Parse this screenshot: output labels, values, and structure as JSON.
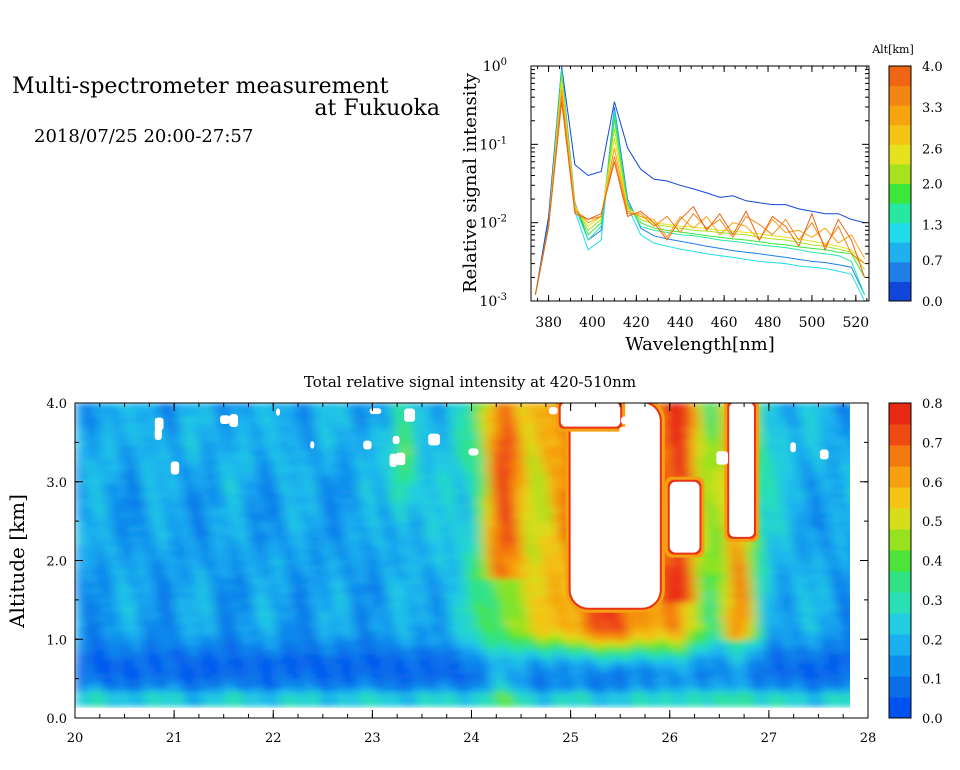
{
  "header": {
    "title_line1": "Multi-spectrometer measurement",
    "title_line2": "at Fukuoka",
    "date_range": "2018/07/25 20:00-27:57"
  },
  "colors": {
    "altitude_scale": [
      "#1047d8",
      "#1f7fe6",
      "#1fb0ee",
      "#20dcea",
      "#27e8a0",
      "#3be83a",
      "#a8e21f",
      "#e6e21f",
      "#f3c414",
      "#f7a40f",
      "#f38612",
      "#ee6514"
    ],
    "intensity_scale": [
      "#0052f0",
      "#0a6ee8",
      "#0d8ded",
      "#1ab0ef",
      "#22cde0",
      "#28dfb6",
      "#30e282",
      "#4ce43a",
      "#96e21f",
      "#d6de1a",
      "#f3c414",
      "#f6a010",
      "#f47a10",
      "#ef4a13",
      "#e82a14"
    ],
    "saturated": "#ffffff"
  },
  "chart_data": [
    {
      "type": "line",
      "xlabel": "Wavelength[nm]",
      "ylabel": "Relative signal intensity",
      "xlim": [
        372,
        526
      ],
      "ylim": [
        0.001,
        1
      ],
      "yscale": "log",
      "x_ticks": [
        "380",
        "400",
        "420",
        "440",
        "460",
        "480",
        "500",
        "520"
      ],
      "y_ticks": [
        {
          "base": "10",
          "exp": "0"
        },
        {
          "base": "10",
          "exp": "-1"
        },
        {
          "base": "10",
          "exp": "-2"
        },
        {
          "base": "10",
          "exp": "-3"
        }
      ],
      "colorbar": {
        "title": "Alt[km]",
        "range": [
          0.0,
          4.0
        ],
        "tick_labels": [
          "4.0",
          "3.3",
          "2.6",
          "2.0",
          "1.3",
          "0.7",
          "0.0"
        ]
      },
      "x": [
        374,
        380,
        386,
        392,
        398,
        404,
        410,
        416,
        422,
        428,
        434,
        440,
        446,
        452,
        458,
        464,
        470,
        476,
        482,
        488,
        494,
        500,
        506,
        512,
        518,
        524
      ],
      "series": [
        {
          "altitude": 0.2,
          "values": [
            0.0012,
            0.012,
            0.98,
            0.055,
            0.04,
            0.045,
            0.35,
            0.09,
            0.048,
            0.036,
            0.034,
            0.03,
            0.027,
            0.024,
            0.021,
            0.022,
            0.019,
            0.018,
            0.017,
            0.017,
            0.015,
            0.014,
            0.013,
            0.013,
            0.011,
            0.01
          ]
        },
        {
          "altitude": 0.6,
          "values": [
            0.0012,
            0.01,
            0.92,
            0.018,
            0.006,
            0.008,
            0.3,
            0.02,
            0.0085,
            0.0068,
            0.0062,
            0.0058,
            0.0054,
            0.005,
            0.0047,
            0.0044,
            0.0042,
            0.004,
            0.0038,
            0.0036,
            0.0034,
            0.0032,
            0.0031,
            0.0029,
            0.0027,
            0.0012
          ]
        },
        {
          "altitude": 1.0,
          "values": [
            0.0012,
            0.009,
            0.9,
            0.014,
            0.0045,
            0.006,
            0.27,
            0.016,
            0.007,
            0.0055,
            0.005,
            0.0046,
            0.0043,
            0.004,
            0.0038,
            0.0036,
            0.0034,
            0.0032,
            0.0031,
            0.003,
            0.0028,
            0.0027,
            0.0026,
            0.0024,
            0.0022,
            0.001
          ]
        },
        {
          "altitude": 1.4,
          "values": [
            0.0012,
            0.009,
            0.85,
            0.016,
            0.006,
            0.009,
            0.24,
            0.018,
            0.009,
            0.008,
            0.0075,
            0.007,
            0.0068,
            0.0064,
            0.006,
            0.0058,
            0.0055,
            0.0052,
            0.005,
            0.0048,
            0.0045,
            0.0042,
            0.004,
            0.0038,
            0.0032,
            0.0012
          ]
        },
        {
          "altitude": 1.8,
          "values": [
            0.0012,
            0.009,
            0.8,
            0.017,
            0.007,
            0.01,
            0.21,
            0.017,
            0.01,
            0.0085,
            0.008,
            0.0076,
            0.0072,
            0.0068,
            0.0065,
            0.0062,
            0.006,
            0.0057,
            0.0054,
            0.0052,
            0.0049,
            0.0047,
            0.0045,
            0.0042,
            0.004,
            0.002
          ]
        },
        {
          "altitude": 2.2,
          "values": [
            0.0012,
            0.009,
            0.72,
            0.017,
            0.008,
            0.011,
            0.16,
            0.016,
            0.011,
            0.0095,
            0.009,
            0.0085,
            0.008,
            0.0078,
            0.0075,
            0.0072,
            0.007,
            0.0065,
            0.0062,
            0.006,
            0.0056,
            0.0052,
            0.005,
            0.0046,
            0.0042,
            0.0025
          ]
        },
        {
          "altitude": 2.6,
          "values": [
            0.0012,
            0.009,
            0.62,
            0.016,
            0.009,
            0.012,
            0.12,
            0.015,
            0.012,
            0.01,
            0.0095,
            0.009,
            0.0088,
            0.0084,
            0.008,
            0.0078,
            0.0075,
            0.0072,
            0.0068,
            0.0065,
            0.0062,
            0.0058,
            0.0054,
            0.005,
            0.0045,
            0.003
          ]
        },
        {
          "altitude": 3.0,
          "values": [
            0.0012,
            0.009,
            0.5,
            0.015,
            0.01,
            0.012,
            0.09,
            0.014,
            0.012,
            0.011,
            0.0065,
            0.012,
            0.0085,
            0.012,
            0.007,
            0.01,
            0.009,
            0.006,
            0.011,
            0.0075,
            0.008,
            0.0065,
            0.0085,
            0.0055,
            0.007,
            0.0035
          ]
        },
        {
          "altitude": 3.4,
          "values": [
            0.0012,
            0.009,
            0.42,
            0.014,
            0.011,
            0.012,
            0.07,
            0.013,
            0.013,
            0.009,
            0.012,
            0.0075,
            0.013,
            0.0085,
            0.011,
            0.0065,
            0.012,
            0.0095,
            0.007,
            0.011,
            0.006,
            0.01,
            0.005,
            0.009,
            0.004,
            0.003
          ]
        },
        {
          "altitude": 3.8,
          "values": [
            0.0012,
            0.009,
            0.35,
            0.013,
            0.011,
            0.013,
            0.06,
            0.012,
            0.014,
            0.01,
            0.006,
            0.011,
            0.016,
            0.008,
            0.013,
            0.007,
            0.014,
            0.006,
            0.012,
            0.009,
            0.005,
            0.013,
            0.0045,
            0.011,
            0.006,
            0.002
          ]
        }
      ]
    },
    {
      "type": "heatmap",
      "title": "Total relative signal intensity at 420-510nm",
      "xlabel": "",
      "ylabel": "Altitude [km]",
      "xlim": [
        20,
        28
      ],
      "ylim": [
        0.0,
        4.0
      ],
      "data_x_range": [
        20.0,
        27.95
      ],
      "data_y_range": [
        0.15,
        4.0
      ],
      "x_ticks": [
        "20",
        "21",
        "22",
        "23",
        "24",
        "25",
        "26",
        "27",
        "28"
      ],
      "y_ticks": [
        "0.0",
        "1.0",
        "2.0",
        "3.0",
        "4.0"
      ],
      "colorbar": {
        "range": [
          0.0,
          0.8
        ],
        "tick_labels": [
          "0.8",
          "0.7",
          "0.6",
          "0.5",
          "0.4",
          "0.3",
          "0.2",
          "0.1",
          "0.0"
        ]
      },
      "saturated_regions": [
        {
          "x": [
            25.0,
            25.9
          ],
          "y": [
            1.4,
            4.0
          ]
        },
        {
          "x": [
            26.0,
            26.3
          ],
          "y": [
            2.1,
            3.0
          ]
        },
        {
          "x": [
            26.6,
            26.85
          ],
          "y": [
            2.3,
            4.0
          ]
        },
        {
          "x": [
            24.9,
            25.5
          ],
          "y": [
            3.7,
            4.0
          ]
        }
      ]
    }
  ]
}
